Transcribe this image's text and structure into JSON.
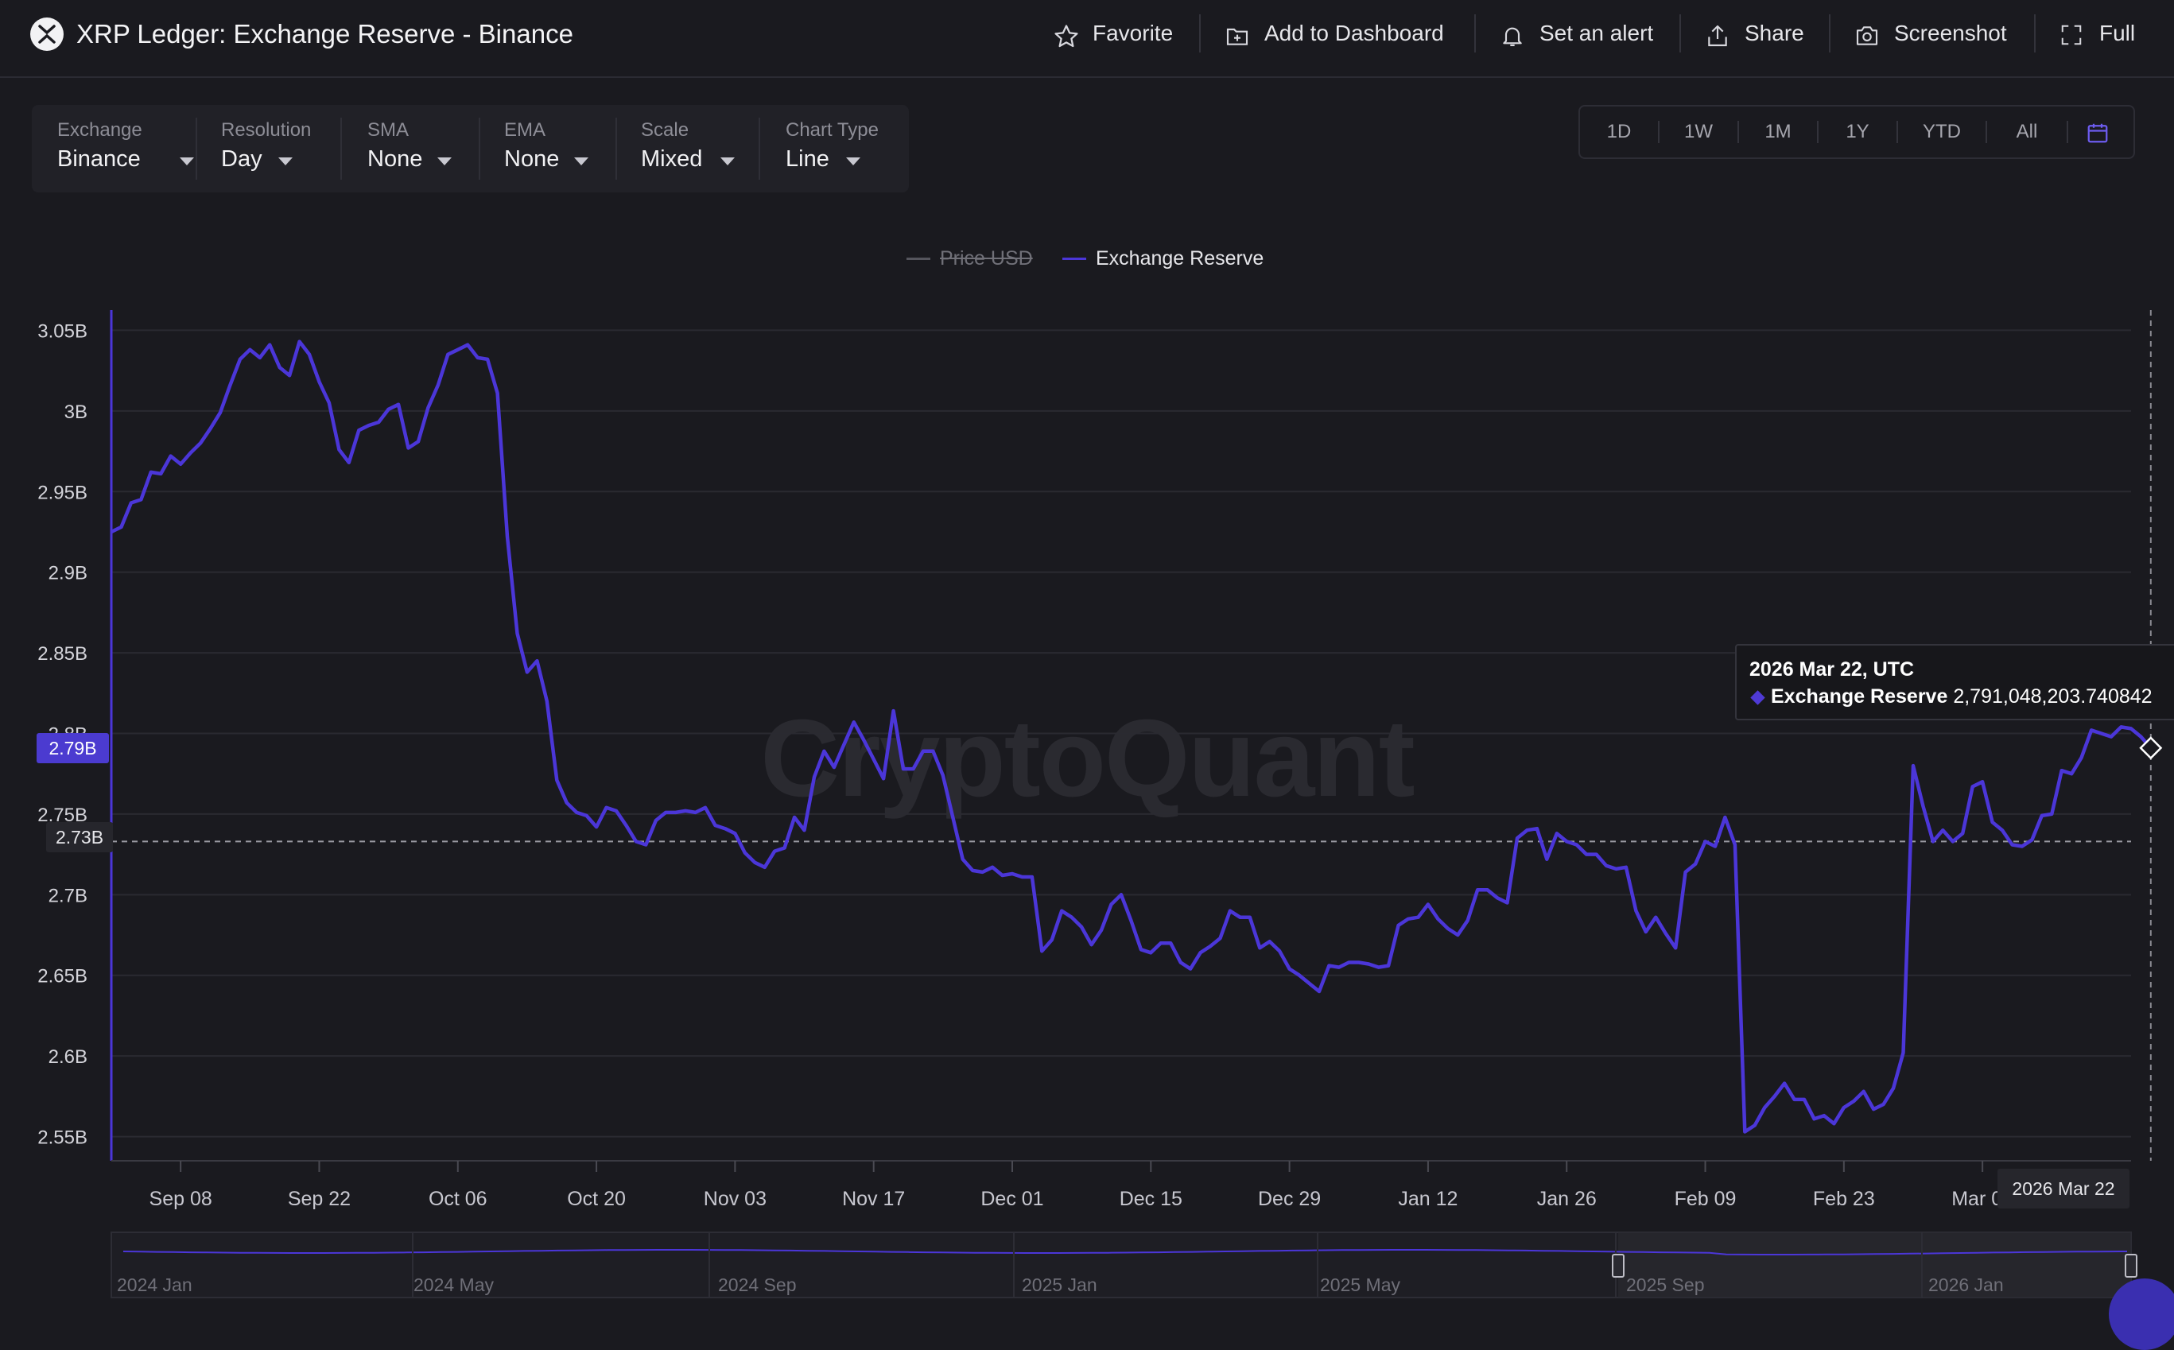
{
  "header": {
    "title": "XRP Ledger: Exchange Reserve - Binance",
    "actions": [
      {
        "label": "Favorite",
        "icon": "star-icon"
      },
      {
        "label": "Add to Dashboard",
        "icon": "dashboard-add-icon"
      },
      {
        "label": "Set an alert",
        "icon": "bell-icon"
      },
      {
        "label": "Share",
        "icon": "share-icon"
      },
      {
        "label": "Screenshot",
        "icon": "camera-icon"
      },
      {
        "label": "Full",
        "icon": "fullscreen-icon"
      }
    ]
  },
  "filters": [
    {
      "label": "Exchange",
      "value": "Binance"
    },
    {
      "label": "Resolution",
      "value": "Day"
    },
    {
      "label": "SMA",
      "value": "None"
    },
    {
      "label": "EMA",
      "value": "None"
    },
    {
      "label": "Scale",
      "value": "Mixed"
    },
    {
      "label": "Chart Type",
      "value": "Line"
    }
  ],
  "ranges": [
    "1D",
    "1W",
    "1M",
    "1Y",
    "YTD",
    "All"
  ],
  "watermark": "CryptoQuant",
  "tooltip": {
    "title": "2026 Mar 22, UTC",
    "series": "Exchange Reserve",
    "value": "2,791,048,203.740842"
  },
  "crosshair": {
    "y_label": "2.79B",
    "line_label": "2.73B",
    "x_label": "2026 Mar 22"
  },
  "colors": {
    "accent": "#4b36d8",
    "background": "#1a1a1f"
  },
  "chart_data": {
    "type": "line",
    "title": "",
    "xlabel": "",
    "ylabel": "",
    "legend": {
      "position": "top-center",
      "entries": [
        {
          "name": "Price USD",
          "hidden": true,
          "color": "#6b6b74"
        },
        {
          "name": "Exchange Reserve",
          "hidden": false,
          "color": "#4b36d8"
        }
      ]
    },
    "grid": true,
    "ylim": [
      2.535,
      3.065
    ],
    "y_ticks": [
      2.55,
      2.6,
      2.65,
      2.7,
      2.75,
      2.8,
      2.85,
      2.9,
      2.95,
      3.0,
      3.05
    ],
    "y_tick_labels": [
      "2.55B",
      "2.6B",
      "2.65B",
      "2.7B",
      "2.75B",
      "2.8B",
      "2.85B",
      "2.9B",
      "2.95B",
      "3B",
      "3.05B"
    ],
    "x_start": "2025-09-01",
    "x_end": "2026-03-22",
    "x_tick_dates": [
      "2025-09-08",
      "2025-09-22",
      "2025-10-06",
      "2025-10-20",
      "2025-11-03",
      "2025-11-17",
      "2025-12-01",
      "2025-12-15",
      "2025-12-29",
      "2026-01-12",
      "2026-01-26",
      "2026-02-09",
      "2026-02-23",
      "2026-03-09"
    ],
    "x_tick_labels": [
      "Sep 08",
      "Sep 22",
      "Oct 06",
      "Oct 20",
      "Nov 03",
      "Nov 17",
      "Dec 01",
      "Dec 15",
      "Dec 29",
      "Jan 12",
      "Jan 26",
      "Feb 09",
      "Feb 23",
      "Mar 09"
    ],
    "series": [
      {
        "name": "Exchange Reserve",
        "values": [
          2.925,
          2.928,
          2.943,
          2.945,
          2.962,
          2.961,
          2.972,
          2.967,
          2.974,
          2.98,
          2.989,
          2.999,
          3.016,
          3.032,
          3.038,
          3.033,
          3.041,
          3.027,
          3.022,
          3.043,
          3.035,
          3.018,
          3.005,
          2.976,
          2.968,
          2.988,
          2.991,
          2.993,
          3.001,
          3.004,
          2.977,
          2.981,
          3.002,
          3.016,
          3.035,
          3.038,
          3.041,
          3.033,
          3.032,
          3.011,
          2.922,
          2.862,
          2.838,
          2.845,
          2.82,
          2.771,
          2.757,
          2.751,
          2.749,
          2.742,
          2.754,
          2.752,
          2.743,
          2.733,
          2.731,
          2.746,
          2.751,
          2.751,
          2.752,
          2.751,
          2.754,
          2.743,
          2.741,
          2.738,
          2.726,
          2.72,
          2.717,
          2.727,
          2.729,
          2.748,
          2.74,
          2.773,
          2.789,
          2.779,
          2.793,
          2.807,
          2.796,
          2.784,
          2.772,
          2.814,
          2.778,
          2.778,
          2.789,
          2.789,
          2.774,
          2.748,
          2.722,
          2.715,
          2.714,
          2.717,
          2.712,
          2.713,
          2.711,
          2.711,
          2.665,
          2.672,
          2.69,
          2.686,
          2.68,
          2.669,
          2.678,
          2.694,
          2.7,
          2.684,
          2.666,
          2.664,
          2.67,
          2.67,
          2.658,
          2.654,
          2.664,
          2.668,
          2.673,
          2.69,
          2.686,
          2.686,
          2.667,
          2.671,
          2.665,
          2.654,
          2.65,
          2.645,
          2.64,
          2.656,
          2.655,
          2.658,
          2.658,
          2.657,
          2.655,
          2.656,
          2.681,
          2.685,
          2.686,
          2.694,
          2.685,
          2.679,
          2.675,
          2.684,
          2.703,
          2.703,
          2.698,
          2.695,
          2.735,
          2.74,
          2.741,
          2.722,
          2.738,
          2.733,
          2.731,
          2.725,
          2.725,
          2.718,
          2.716,
          2.717,
          2.69,
          2.677,
          2.686,
          2.676,
          2.667,
          2.714,
          2.719,
          2.733,
          2.73,
          2.748,
          2.731,
          2.553,
          2.557,
          2.568,
          2.575,
          2.583,
          2.573,
          2.573,
          2.561,
          2.563,
          2.558,
          2.568,
          2.572,
          2.578,
          2.567,
          2.57,
          2.58,
          2.602,
          2.78,
          2.755,
          2.733,
          2.74,
          2.733,
          2.738,
          2.767,
          2.77,
          2.745,
          2.74,
          2.731,
          2.73,
          2.734,
          2.749,
          2.75,
          2.777,
          2.775,
          2.785,
          2.802,
          2.8,
          2.798,
          2.804,
          2.803,
          2.798,
          2.791
        ]
      }
    ]
  },
  "navigator": {
    "labels": [
      "2024 Jan",
      "2024 May",
      "2024 Sep",
      "2025 Jan",
      "2025 May",
      "2025 Sep",
      "2026 Jan"
    ]
  }
}
